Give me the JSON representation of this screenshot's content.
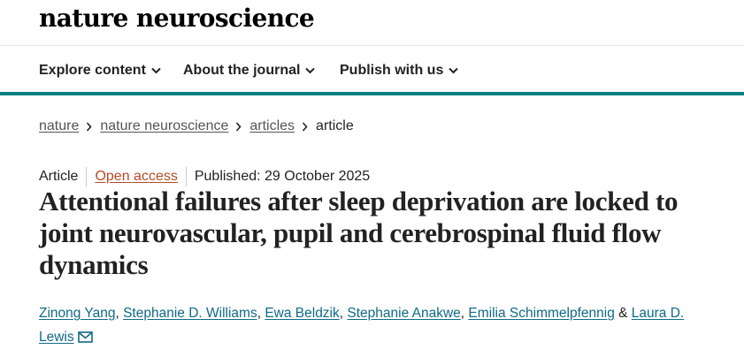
{
  "header": {
    "brand": "nature neuroscience"
  },
  "nav": {
    "items": [
      {
        "label": "Explore content",
        "icon": "chevron-down-icon"
      },
      {
        "label": "About the journal",
        "icon": "chevron-down-icon"
      },
      {
        "label": "Publish with us",
        "icon": "chevron-down-icon"
      }
    ]
  },
  "breadcrumb": {
    "items": [
      "nature",
      "nature neuroscience",
      "articles"
    ],
    "current": "article"
  },
  "meta": {
    "type": "Article",
    "access": "Open access",
    "published": "Published: 29 October 2025"
  },
  "article": {
    "title": "Attentional failures after sleep deprivation are locked to joint neurovascular, pupil and cerebrospinal fluid flow dynamics",
    "authors": [
      "Zinong Yang",
      "Stephanie D. Williams",
      "Ewa Beldzik",
      "Stephanie Anakwe",
      "Emilia Schimmelpfennig",
      "Laura D. Lewis"
    ],
    "author_separator": ", ",
    "last_separator": " & ",
    "contact_icon": "mail-icon"
  },
  "colors": {
    "accent": "#0f7f80",
    "open_access": "#b54a23",
    "author_link": "#0f6a88"
  }
}
